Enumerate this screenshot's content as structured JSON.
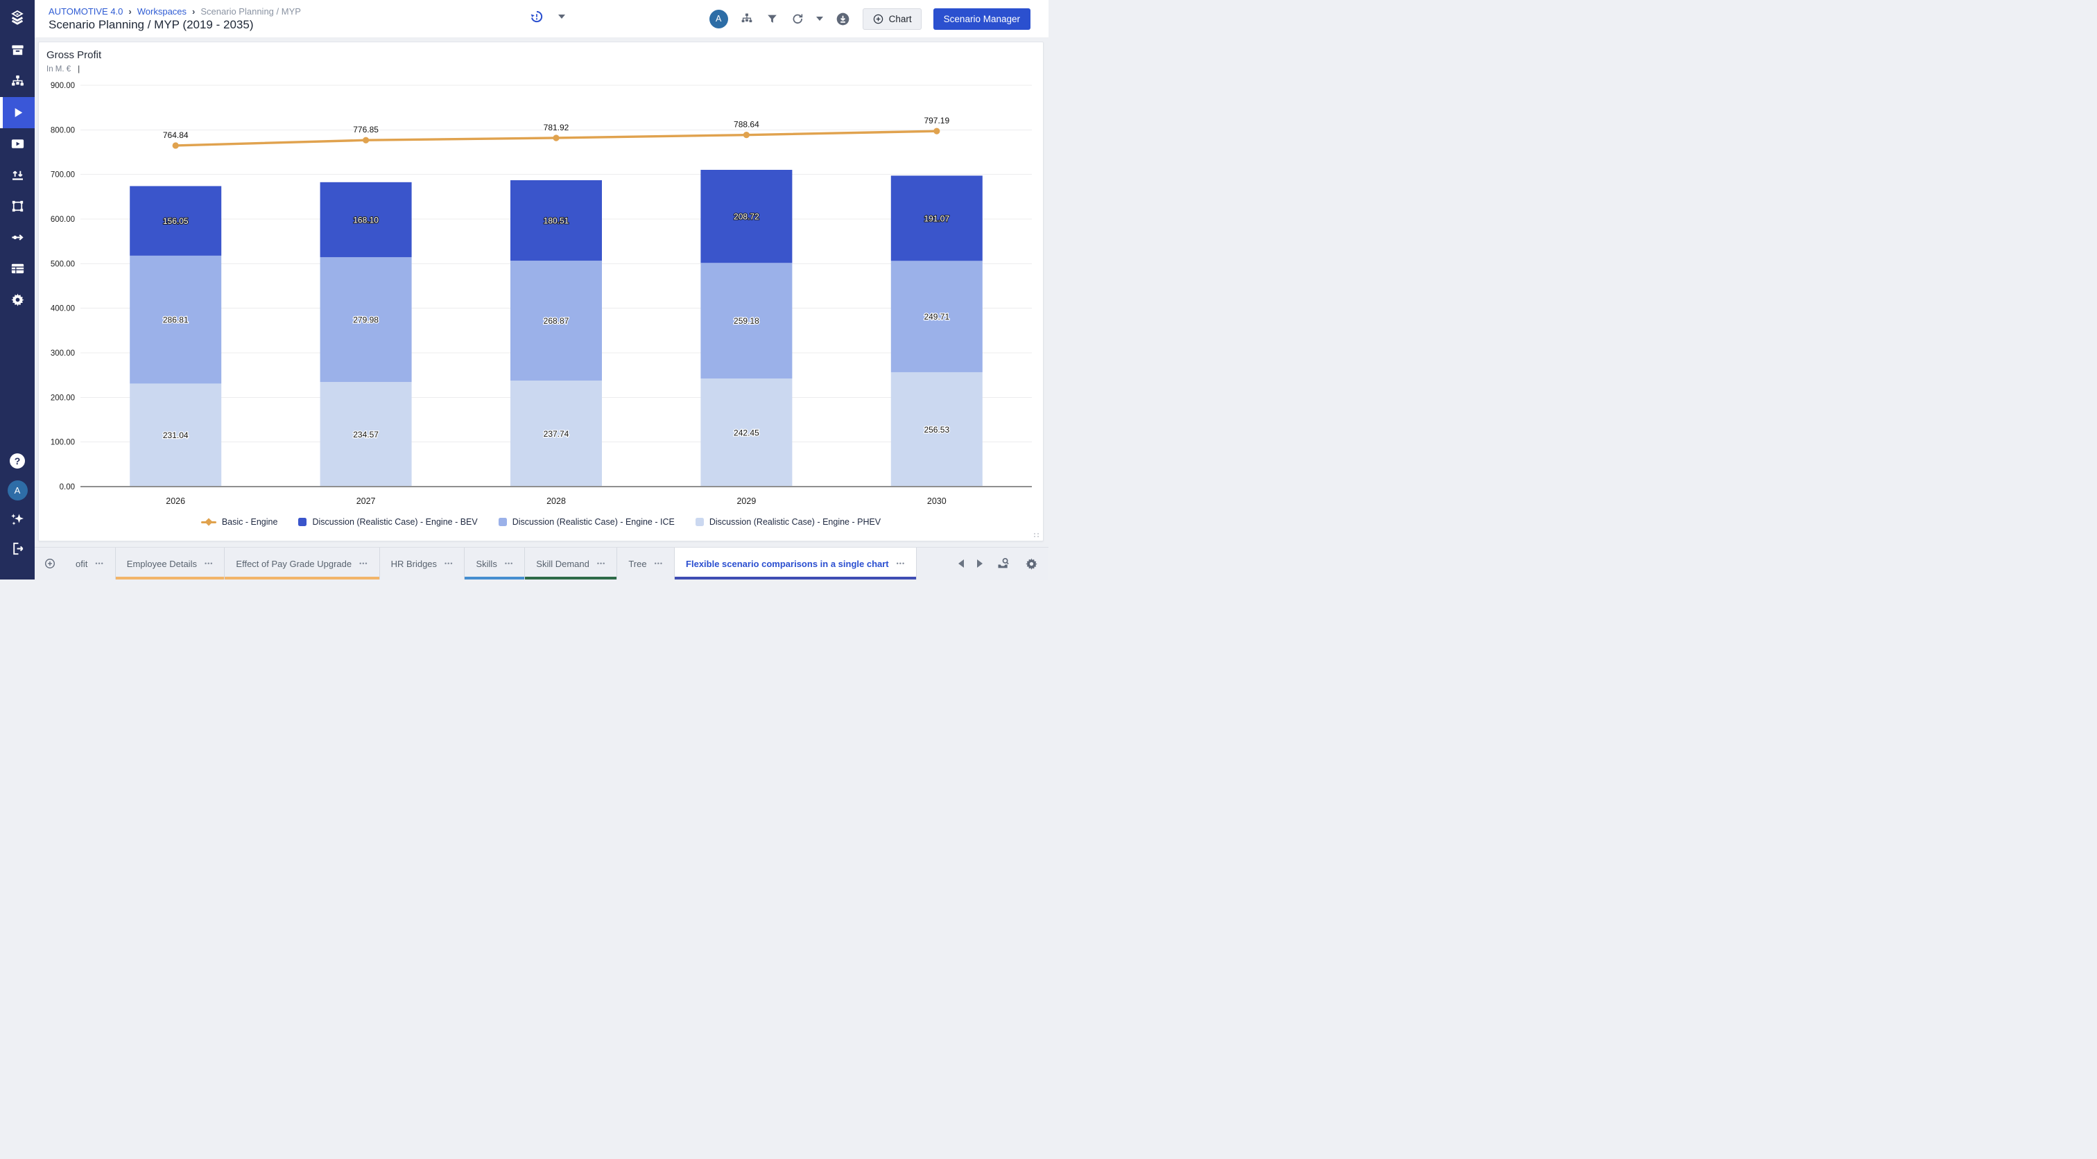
{
  "header": {
    "breadcrumb": {
      "items": [
        "AUTOMOTIVE 4.0",
        "Workspaces",
        "Scenario Planning / MYP"
      ],
      "separator": "›"
    },
    "title": "Scenario Planning / MYP (2019 - 2035)",
    "avatar_initial": "A",
    "buttons": {
      "chart": "Chart",
      "scenario_manager": "Scenario Manager"
    }
  },
  "sidebar": {
    "avatar_initial": "A",
    "help_glyph": "?"
  },
  "chart": {
    "title": "Gross Profit",
    "subtitle": "In M. €",
    "subtitle_divider": "|"
  },
  "chart_data": {
    "type": "bar",
    "subtype": "stacked-bars-with-line-overlay",
    "title": "Gross Profit",
    "ylabel": "In M. €",
    "categories": [
      "2026",
      "2027",
      "2028",
      "2029",
      "2030"
    ],
    "series": [
      {
        "name": "Basic - Engine",
        "type": "line",
        "color": "#E0A24E",
        "values": [
          764.84,
          776.85,
          781.92,
          788.64,
          797.19
        ]
      },
      {
        "name": "Discussion (Realistic Case) - Engine - BEV",
        "type": "bar",
        "color": "#3A55CB",
        "values": [
          156.05,
          168.1,
          180.51,
          208.72,
          191.07
        ]
      },
      {
        "name": "Discussion (Realistic Case) - Engine - ICE",
        "type": "bar",
        "color": "#9BB1E9",
        "values": [
          286.81,
          279.98,
          268.87,
          259.18,
          249.71
        ]
      },
      {
        "name": "Discussion (Realistic Case) - Engine - PHEV",
        "type": "bar",
        "color": "#CBD8F0",
        "values": [
          231.04,
          234.57,
          237.74,
          242.45,
          256.53
        ]
      }
    ],
    "stack_order_bottom_to_top": [
      "PHEV",
      "ICE",
      "BEV"
    ],
    "ylim": [
      0,
      900
    ],
    "ytick_step": 100,
    "value_label_decimals": 2,
    "grid": true,
    "legend_position": "bottom"
  },
  "tabs": {
    "menu_glyph": "•••",
    "items": [
      {
        "label": "ofit",
        "underline": null,
        "active": false
      },
      {
        "label": "Employee Details",
        "underline": "#F2B469",
        "active": false
      },
      {
        "label": "Effect of Pay Grade Upgrade",
        "underline": "#F2B469",
        "active": false
      },
      {
        "label": "HR Bridges",
        "underline": null,
        "active": false
      },
      {
        "label": "Skills",
        "underline": "#468ED0",
        "active": false
      },
      {
        "label": "Skill Demand",
        "underline": "#2E6B48",
        "active": false
      },
      {
        "label": "Tree",
        "underline": null,
        "active": false
      },
      {
        "label": "Flexible scenario comparisons in a single chart",
        "underline": "#3F4DB3",
        "active": true
      }
    ]
  },
  "colors": {
    "brand_navy": "#232D5C",
    "accent_blue": "#2B50CF",
    "active_nav_blue": "#3A57D8",
    "avatar_blue": "#2D6DA6",
    "line_orange": "#E0A24E",
    "tab_bar_bg": "#EDEFF4"
  }
}
